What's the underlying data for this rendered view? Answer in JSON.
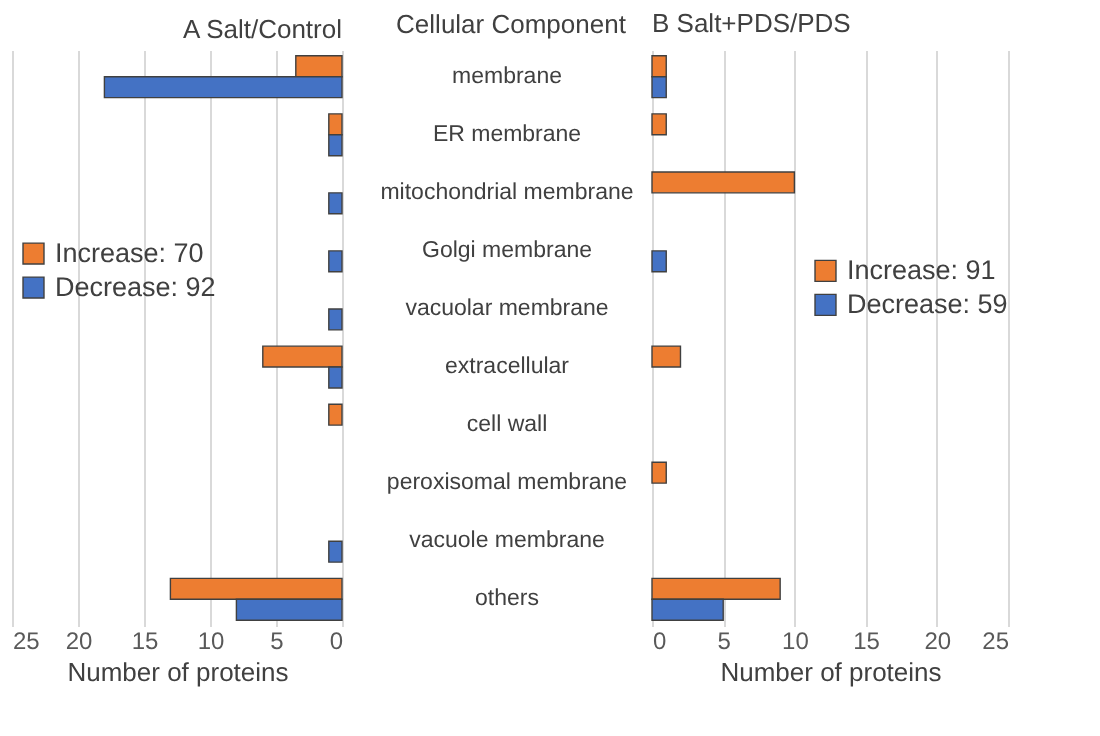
{
  "chart_data": [
    {
      "type": "bar",
      "orientation": "horizontal",
      "title": "A  Salt/Control",
      "ylabel": "Cellular Component",
      "xlabel": "Number of proteins",
      "categories": [
        "membrane",
        "ER membrane",
        "mitochondrial membrane",
        "Golgi membrane",
        "vacuolar membrane",
        "extracellular",
        "cell wall",
        "peroxisomal membrane",
        "vacuole membrane",
        "others"
      ],
      "series": [
        {
          "name": "Increase: 70",
          "color": "#ed7d31",
          "values": [
            3.5,
            1,
            null,
            null,
            null,
            6,
            1,
            null,
            null,
            13
          ]
        },
        {
          "name": "Decrease: 92",
          "color": "#4472c4",
          "values": [
            18,
            1,
            1,
            1,
            1,
            1,
            null,
            null,
            1,
            8
          ]
        }
      ],
      "xlim": [
        25,
        0
      ],
      "xticks": [
        25,
        20,
        15,
        10,
        5,
        0
      ],
      "grid": "x",
      "legend": "left"
    },
    {
      "type": "bar",
      "orientation": "horizontal",
      "title": "B  Salt+PDS/PDS",
      "xlabel": "Number of proteins",
      "categories": [
        null,
        null,
        null,
        null,
        null,
        null,
        null,
        null,
        null,
        null
      ],
      "series": [
        {
          "name": "Increase: 91",
          "color": "#ed7d31",
          "values": [
            1,
            1,
            10,
            null,
            null,
            2,
            null,
            1,
            null,
            9
          ]
        },
        {
          "name": "Decrease: 59",
          "color": "#4472c4",
          "values": [
            1,
            null,
            null,
            1,
            null,
            null,
            null,
            null,
            null,
            5
          ]
        }
      ],
      "xlim": [
        0,
        25
      ],
      "xticks": [
        0,
        5,
        10,
        15,
        20,
        25
      ],
      "grid": "x",
      "legend": "right",
      "tick_labels": "x"
    }
  ]
}
